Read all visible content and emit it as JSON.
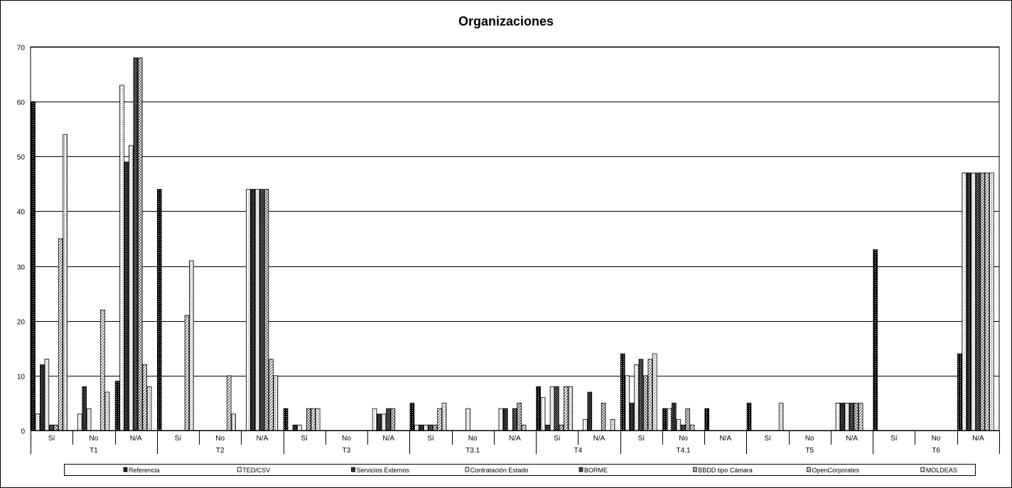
{
  "chart_data": {
    "type": "bar",
    "title": "Organizaciones",
    "ylim": [
      0,
      70
    ],
    "yticks": [
      0,
      10,
      20,
      30,
      40,
      50,
      60,
      70
    ],
    "grid": true,
    "legend_position": "bottom",
    "groups": [
      {
        "label": "T1",
        "categories": [
          "Sí",
          "No",
          "N/A"
        ]
      },
      {
        "label": "T2",
        "categories": [
          "Sí",
          "No",
          "N/A"
        ]
      },
      {
        "label": "T3",
        "categories": [
          "Sí",
          "No",
          "N/A"
        ]
      },
      {
        "label": "T3.1",
        "categories": [
          "Sí",
          "No",
          "N/A"
        ]
      },
      {
        "label": "T4",
        "categories": [
          "Sí",
          "N/A"
        ]
      },
      {
        "label": "T4.1",
        "categories": [
          "Sí",
          "No",
          "N/A"
        ]
      },
      {
        "label": "T5",
        "categories": [
          "Sí",
          "No",
          "N/A"
        ]
      },
      {
        "label": "T6",
        "categories": [
          "Sí",
          "No",
          "N/A"
        ]
      }
    ],
    "series": [
      {
        "name": "Referencia",
        "values": [
          60,
          0,
          9,
          44,
          0,
          0,
          4,
          0,
          0,
          5,
          0,
          0,
          8,
          0,
          14,
          4,
          4,
          5,
          0,
          0,
          33,
          0,
          14
        ]
      },
      {
        "name": "TED/CSV",
        "values": [
          3,
          3,
          63,
          0,
          0,
          44,
          0,
          0,
          4,
          1,
          0,
          4,
          6,
          2,
          10,
          4,
          0,
          0,
          0,
          5,
          0,
          0,
          47
        ]
      },
      {
        "name": "Servicios Externos",
        "values": [
          12,
          8,
          49,
          0,
          0,
          44,
          1,
          0,
          3,
          1,
          0,
          4,
          1,
          7,
          5,
          5,
          0,
          0,
          0,
          5,
          0,
          0,
          47
        ]
      },
      {
        "name": "Contratación Estado",
        "values": [
          13,
          4,
          52,
          0,
          0,
          44,
          1,
          0,
          3,
          1,
          4,
          0,
          8,
          0,
          12,
          2,
          0,
          0,
          0,
          5,
          0,
          0,
          47
        ]
      },
      {
        "name": "BORME",
        "values": [
          1,
          0,
          68,
          0,
          0,
          44,
          0,
          0,
          4,
          1,
          0,
          4,
          8,
          0,
          13,
          1,
          0,
          0,
          0,
          5,
          0,
          0,
          47
        ]
      },
      {
        "name": "BBDD tipo Cámara",
        "values": [
          1,
          0,
          68,
          0,
          0,
          44,
          4,
          0,
          4,
          1,
          0,
          5,
          1,
          5,
          10,
          4,
          0,
          0,
          0,
          5,
          0,
          0,
          47
        ]
      },
      {
        "name": "OpenCorporates",
        "values": [
          35,
          22,
          12,
          21,
          10,
          13,
          4,
          0,
          0,
          4,
          0,
          1,
          8,
          0,
          13,
          1,
          0,
          0,
          0,
          5,
          0,
          0,
          47
        ]
      },
      {
        "name": "MOLDEAS",
        "values": [
          54,
          7,
          8,
          31,
          3,
          10,
          4,
          0,
          0,
          5,
          0,
          0,
          8,
          2,
          14,
          0,
          0,
          5,
          0,
          0,
          0,
          0,
          47
        ]
      }
    ]
  },
  "series_styles": [
    {
      "fill": "#000000",
      "pattern": "dots-white"
    },
    {
      "fill": "#ffffff",
      "pattern": "dots-black"
    },
    {
      "fill": "#000000",
      "pattern": "dots-white-dense"
    },
    {
      "fill": "#ffffff",
      "pattern": "dots-fine"
    },
    {
      "fill": "#333333",
      "pattern": "cross"
    },
    {
      "fill": "#ffffff",
      "pattern": "crosshatch"
    },
    {
      "fill": "#ffffff",
      "pattern": "diagonal"
    },
    {
      "fill": "#ffffff",
      "pattern": "grid"
    }
  ]
}
